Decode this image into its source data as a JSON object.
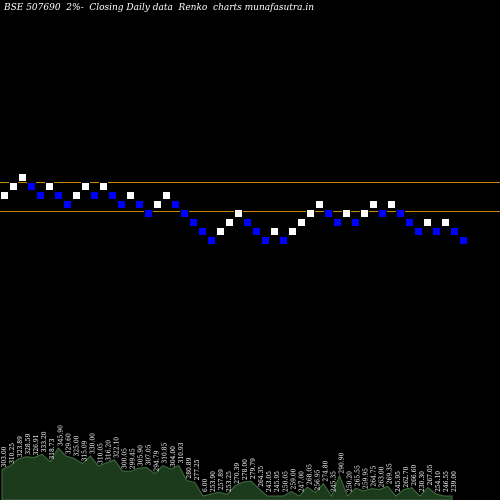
{
  "chart_data": {
    "type": "renko",
    "title": "BSE 507690  2%-  Closing Daily data  Renko  charts munafasutra.in",
    "colors": {
      "background": "#000000",
      "up_brick": "#ffffff",
      "down_brick": "#0000ff",
      "reference_line": "#cc8800",
      "volume_area": "#1c3a1c",
      "volume_edge": "#3f6f3f"
    },
    "reference_lines": [
      338.0,
      312.0
    ],
    "bricks": [
      {
        "dir": "up",
        "value": 330.0
      },
      {
        "dir": "up",
        "value": 338.0
      },
      {
        "dir": "up",
        "value": 346.0
      },
      {
        "dir": "down",
        "value": 338.0
      },
      {
        "dir": "down",
        "value": 330.0
      },
      {
        "dir": "up",
        "value": 338.0
      },
      {
        "dir": "down",
        "value": 330.0
      },
      {
        "dir": "down",
        "value": 322.0
      },
      {
        "dir": "up",
        "value": 330.0
      },
      {
        "dir": "up",
        "value": 338.0
      },
      {
        "dir": "down",
        "value": 330.0
      },
      {
        "dir": "up",
        "value": 338.0
      },
      {
        "dir": "down",
        "value": 330.0
      },
      {
        "dir": "down",
        "value": 322.0
      },
      {
        "dir": "up",
        "value": 330.0
      },
      {
        "dir": "down",
        "value": 322.0
      },
      {
        "dir": "down",
        "value": 314.0
      },
      {
        "dir": "up",
        "value": 322.0
      },
      {
        "dir": "up",
        "value": 330.0
      },
      {
        "dir": "down",
        "value": 322.0
      },
      {
        "dir": "down",
        "value": 314.0
      },
      {
        "dir": "down",
        "value": 306.0
      },
      {
        "dir": "down",
        "value": 298.0
      },
      {
        "dir": "down",
        "value": 290.0
      },
      {
        "dir": "up",
        "value": 298.0
      },
      {
        "dir": "up",
        "value": 306.0
      },
      {
        "dir": "up",
        "value": 314.0
      },
      {
        "dir": "down",
        "value": 306.0
      },
      {
        "dir": "down",
        "value": 298.0
      },
      {
        "dir": "down",
        "value": 290.0
      },
      {
        "dir": "up",
        "value": 298.0
      },
      {
        "dir": "down",
        "value": 290.0
      },
      {
        "dir": "up",
        "value": 298.0
      },
      {
        "dir": "up",
        "value": 306.0
      },
      {
        "dir": "up",
        "value": 314.0
      },
      {
        "dir": "up",
        "value": 322.0
      },
      {
        "dir": "down",
        "value": 314.0
      },
      {
        "dir": "down",
        "value": 306.0
      },
      {
        "dir": "up",
        "value": 314.0
      },
      {
        "dir": "down",
        "value": 306.0
      },
      {
        "dir": "up",
        "value": 314.0
      },
      {
        "dir": "up",
        "value": 322.0
      },
      {
        "dir": "down",
        "value": 314.0
      },
      {
        "dir": "up",
        "value": 322.0
      },
      {
        "dir": "down",
        "value": 314.0
      },
      {
        "dir": "down",
        "value": 306.0
      },
      {
        "dir": "down",
        "value": 298.0
      },
      {
        "dir": "up",
        "value": 306.0
      },
      {
        "dir": "down",
        "value": 298.0
      },
      {
        "dir": "up",
        "value": 306.0
      },
      {
        "dir": "down",
        "value": 298.0
      },
      {
        "dir": "down",
        "value": 290.0
      }
    ],
    "volume_labels": [
      "303.00",
      "310.25",
      "323.89",
      "328.59",
      "326.91",
      "333.20",
      "318.73",
      "345.90",
      "329.60",
      "325.00",
      "315.09",
      "330.00",
      "310.05",
      "316.20",
      "322.10",
      "300.05",
      "299.45",
      "305.90",
      "307.05",
      "294.79",
      "310.85",
      "304.00",
      "310.93",
      "280.89",
      "277.25",
      "6.00",
      "253.90",
      "257.89",
      "253.25",
      "270.39",
      "278.00",
      "279.79",
      "264.35",
      "243.05",
      "245.95",
      "250.05",
      "259.00",
      "247.00",
      "268.05",
      "256.95",
      "274.80",
      "245.35",
      "290.90",
      "250.20",
      "265.55",
      "259.95",
      "264.75",
      "263.00",
      "269.35",
      "245.95",
      "262.70",
      "266.60",
      "230.30",
      "267.05",
      "254.10",
      "246.55",
      "239.00"
    ]
  }
}
